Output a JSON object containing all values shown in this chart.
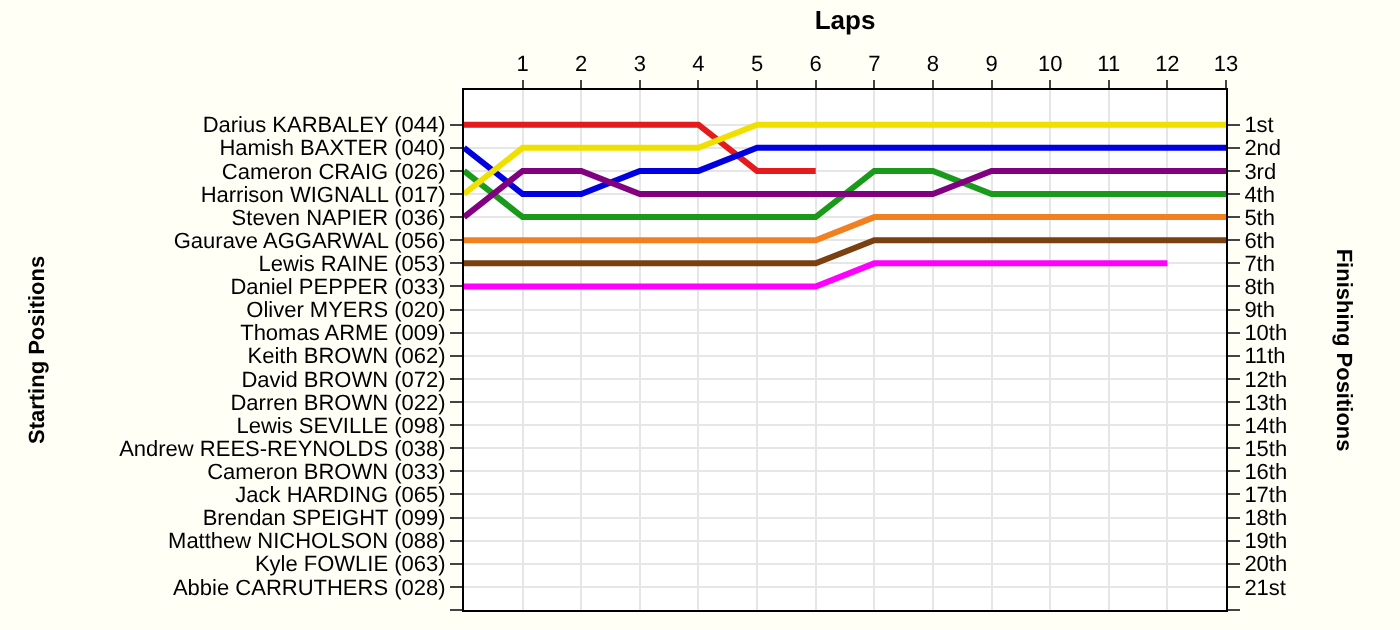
{
  "chart_data": {
    "type": "line",
    "xlabel": "Laps",
    "annotations": [
      "Starting Positions"
    ],
    "y2label": "Finishing Positions",
    "x": [
      0,
      1,
      2,
      3,
      4,
      5,
      6,
      7,
      8,
      9,
      10,
      11,
      12,
      13
    ],
    "xlim": [
      0,
      13
    ],
    "xticks": [
      1,
      2,
      3,
      4,
      5,
      6,
      7,
      8,
      9,
      10,
      11,
      12,
      13
    ],
    "y_categories": [
      "Darius KARBALEY (044)",
      "Hamish BAXTER (040)",
      "Cameron CRAIG (026)",
      "Harrison WIGNALL (017)",
      "Steven NAPIER (036)",
      "Gaurave AGGARWAL (056)",
      "Lewis RAINE (053)",
      "Daniel PEPPER (033)",
      "Oliver MYERS (020)",
      "Thomas ARME (009)",
      "Keith BROWN (062)",
      "David BROWN (072)",
      "Darren BROWN (022)",
      "Lewis SEVILLE (098)",
      "Andrew REES-REYNOLDS (038)",
      "Cameron BROWN (033)",
      "Jack HARDING (065)",
      "Brendan SPEIGHT (099)",
      "Matthew NICHOLSON (088)",
      "Kyle FOWLIE (063)",
      "Abbie CARRUTHERS (028)",
      null
    ],
    "y2lim": [
      22,
      -0.5
    ],
    "y2ticks": [
      {
        "value": 1,
        "label": "1st"
      },
      {
        "value": 2,
        "label": "2nd"
      },
      {
        "value": 3,
        "label": "3rd"
      },
      {
        "value": 4,
        "label": "4th"
      },
      {
        "value": 5,
        "label": "5th"
      },
      {
        "value": 6,
        "label": "6th"
      },
      {
        "value": 7,
        "label": "7th"
      },
      {
        "value": 8,
        "label": "8th"
      },
      {
        "value": 9,
        "label": "9th"
      },
      {
        "value": 10,
        "label": "10th"
      },
      {
        "value": 11,
        "label": "11th"
      },
      {
        "value": 12,
        "label": "12th"
      },
      {
        "value": 13,
        "label": "13th"
      },
      {
        "value": 14,
        "label": "14th"
      },
      {
        "value": 15,
        "label": "15th"
      },
      {
        "value": 16,
        "label": "16th"
      },
      {
        "value": 17,
        "label": "17th"
      },
      {
        "value": 18,
        "label": "18th"
      },
      {
        "value": 19,
        "label": "19th"
      },
      {
        "value": 20,
        "label": "20th"
      },
      {
        "value": 21,
        "label": "21st"
      },
      {
        "value": 22,
        "label": null
      }
    ],
    "grid": true,
    "marker": "none",
    "line_style": "solid",
    "series": [
      {
        "color": "#e41a1c",
        "axis": "y2",
        "values": [
          1,
          1,
          1,
          1,
          1,
          3,
          3,
          null,
          null,
          null,
          null,
          null,
          null,
          null
        ]
      },
      {
        "color": "#0000e0",
        "axis": "y2",
        "values": [
          2,
          4,
          4,
          3,
          3,
          2,
          2,
          2,
          2,
          2,
          2,
          2,
          2,
          2
        ]
      },
      {
        "color": "#1a9a1a",
        "axis": "y2",
        "values": [
          3,
          5,
          5,
          5,
          5,
          5,
          5,
          3,
          3,
          4,
          4,
          4,
          4,
          4
        ]
      },
      {
        "color": "#f0e000",
        "axis": "y2",
        "values": [
          4,
          2,
          2,
          2,
          2,
          1,
          1,
          1,
          1,
          1,
          1,
          1,
          1,
          1
        ]
      },
      {
        "color": "#800080",
        "axis": "y2",
        "values": [
          5,
          3,
          3,
          4,
          4,
          4,
          4,
          4,
          4,
          3,
          3,
          3,
          3,
          3
        ]
      },
      {
        "color": "#f08020",
        "axis": "y2",
        "values": [
          6,
          6,
          6,
          6,
          6,
          6,
          6,
          5,
          5,
          5,
          5,
          5,
          5,
          5
        ]
      },
      {
        "color": "#7a4010",
        "axis": "y2",
        "values": [
          7,
          7,
          7,
          7,
          7,
          7,
          7,
          6,
          6,
          6,
          6,
          6,
          6,
          6
        ]
      },
      {
        "color": "#ff00ff",
        "axis": "y2",
        "values": [
          8,
          8,
          8,
          8,
          8,
          8,
          8,
          7,
          7,
          7,
          7,
          7,
          7,
          null
        ]
      }
    ]
  }
}
